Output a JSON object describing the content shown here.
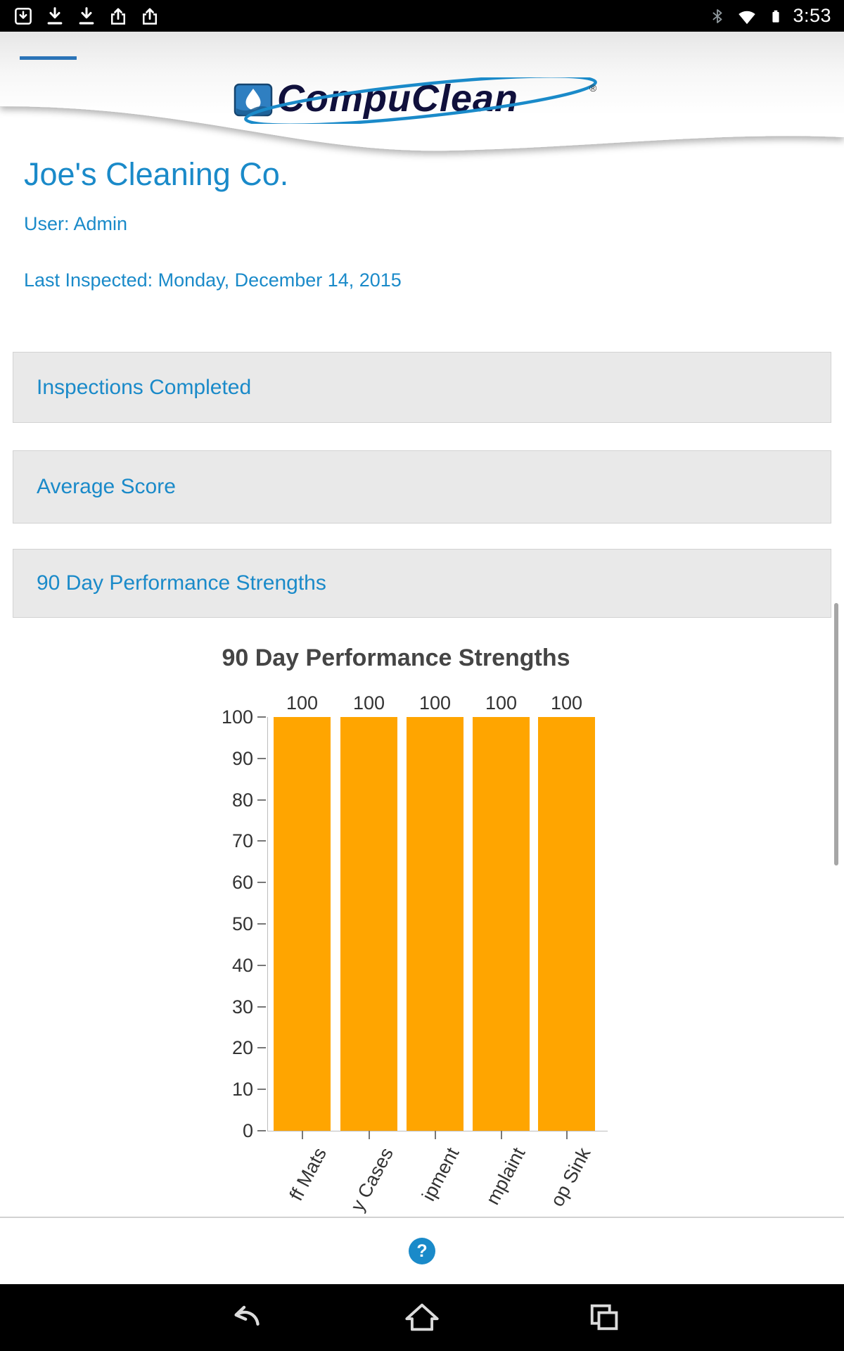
{
  "status_bar": {
    "time": "3:53",
    "left_icons": [
      "sd-download-icon",
      "download-icon",
      "download-icon",
      "export-icon",
      "export-icon"
    ],
    "right_icons": [
      "bluetooth-icon",
      "wifi-icon",
      "battery-icon"
    ]
  },
  "header": {
    "logo_text": "CompuClean",
    "registered_mark": "®"
  },
  "account": {
    "company": "Joe's Cleaning Co.",
    "user": "User: Admin",
    "last_inspected": "Last Inspected: Monday, December 14, 2015"
  },
  "sections": [
    {
      "label": "Inspections Completed"
    },
    {
      "label": "Average Score"
    },
    {
      "label": "90 Day Performance Strengths"
    }
  ],
  "chart_data": {
    "type": "bar",
    "title": "90 Day Performance Strengths",
    "categories": [
      "ff Mats",
      "y Cases",
      "ipment",
      "mplaint",
      "op Sink"
    ],
    "values": [
      100,
      100,
      100,
      100,
      100
    ],
    "value_labels": [
      "100",
      "100",
      "100",
      "100",
      "100"
    ],
    "xlabel": "",
    "ylabel": "",
    "ylim": [
      0,
      100
    ],
    "yticks": [
      0,
      10,
      20,
      30,
      40,
      50,
      60,
      70,
      80,
      90,
      100
    ],
    "grid": false,
    "legend": "none",
    "bar_color": "#FFA500"
  },
  "help_button": {
    "label": "?"
  },
  "nav_bar": {
    "icons": [
      "back-icon",
      "home-icon",
      "recents-icon"
    ]
  },
  "colors": {
    "accent_blue": "#1a8ac9",
    "panel_bg": "#e9e9e9",
    "bar_orange": "#FFA500",
    "status_bar_bg": "#000000"
  }
}
